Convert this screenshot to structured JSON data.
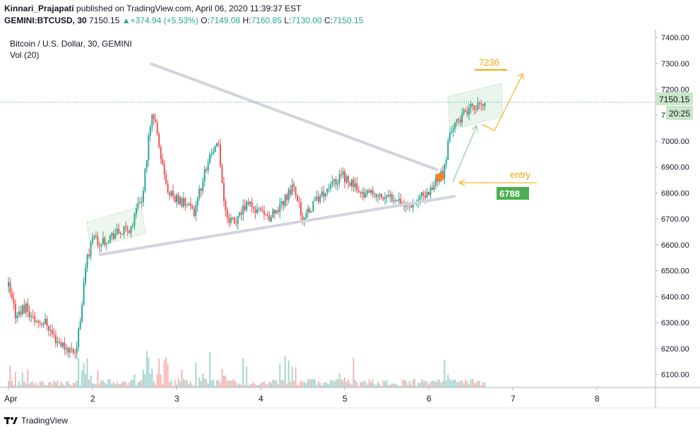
{
  "header": {
    "author": "Kinnari_Prajapati",
    "published": "published on TradingView.com, April 06, 2020 11:39:37 EST",
    "symbol": "GEMINI:BTCUSD, 30",
    "last": "7150.15",
    "change": "+374.94 (+5.53%)",
    "o_label": "O:",
    "o_value": "7149.08",
    "h_label": "H:",
    "h_value": "7160.85",
    "l_label": "L:",
    "l_value": "7130.00",
    "c_label": "C:",
    "c_value": "7150.15"
  },
  "footer": {
    "brand": "TradingView"
  },
  "colors": {
    "up": "#26a69a",
    "down": "#ef5350",
    "orange": "#f7a600",
    "green_label": "#4caf50"
  },
  "chart_data": {
    "type": "candlestick",
    "title": "Bitcoin / U.S. Dollar, 30, GEMINI",
    "indicator": "Vol (20)",
    "y_ticks": [
      6100,
      6200,
      6300,
      6400,
      6500,
      6600,
      6700,
      6800,
      6900,
      7000,
      7100,
      7200,
      7300,
      7400
    ],
    "y_tick_labels": [
      "6100.00",
      "6200.00",
      "6300.00",
      "6400.00",
      "6500.00",
      "6600.00",
      "6700.00",
      "6800.00",
      "6900.00",
      "7000.00",
      "7100.00",
      "7200.00",
      "7300.00",
      "7400.00"
    ],
    "ylim": [
      6050,
      7430
    ],
    "x_ticks": [
      "Apr",
      "2",
      "3",
      "4",
      "5",
      "6",
      "7",
      "8"
    ],
    "xlim_days": [
      1.0,
      8.7
    ],
    "last_price_label": "7150.15",
    "countdown_label": "20:25",
    "annotations": {
      "target": "7236",
      "entry": "entry",
      "entry_price": "6788"
    },
    "price_path": [
      [
        1.0,
        6440
      ],
      [
        1.08,
        6330
      ],
      [
        1.2,
        6360
      ],
      [
        1.3,
        6310
      ],
      [
        1.45,
        6300
      ],
      [
        1.55,
        6240
      ],
      [
        1.7,
        6200
      ],
      [
        1.8,
        6190
      ],
      [
        1.85,
        6300
      ],
      [
        1.92,
        6530
      ],
      [
        2.0,
        6620
      ],
      [
        2.1,
        6610
      ],
      [
        2.25,
        6640
      ],
      [
        2.45,
        6660
      ],
      [
        2.6,
        6800
      ],
      [
        2.68,
        7050
      ],
      [
        2.72,
        7120
      ],
      [
        2.8,
        6950
      ],
      [
        2.9,
        6800
      ],
      [
        3.0,
        6780
      ],
      [
        3.1,
        6760
      ],
      [
        3.2,
        6720
      ],
      [
        3.3,
        6830
      ],
      [
        3.4,
        6960
      ],
      [
        3.5,
        6980
      ],
      [
        3.58,
        6720
      ],
      [
        3.7,
        6680
      ],
      [
        3.85,
        6770
      ],
      [
        4.0,
        6720
      ],
      [
        4.1,
        6700
      ],
      [
        4.25,
        6760
      ],
      [
        4.4,
        6830
      ],
      [
        4.5,
        6700
      ],
      [
        4.65,
        6760
      ],
      [
        4.8,
        6810
      ],
      [
        4.95,
        6870
      ],
      [
        5.05,
        6850
      ],
      [
        5.2,
        6800
      ],
      [
        5.35,
        6790
      ],
      [
        5.5,
        6780
      ],
      [
        5.62,
        6790
      ],
      [
        5.72,
        6750
      ],
      [
        5.85,
        6770
      ],
      [
        6.0,
        6800
      ],
      [
        6.1,
        6860
      ],
      [
        6.18,
        6880
      ],
      [
        6.25,
        7030
      ],
      [
        6.35,
        7080
      ],
      [
        6.45,
        7110
      ],
      [
        6.55,
        7140
      ],
      [
        6.62,
        7130
      ],
      [
        6.67,
        7150
      ]
    ]
  }
}
